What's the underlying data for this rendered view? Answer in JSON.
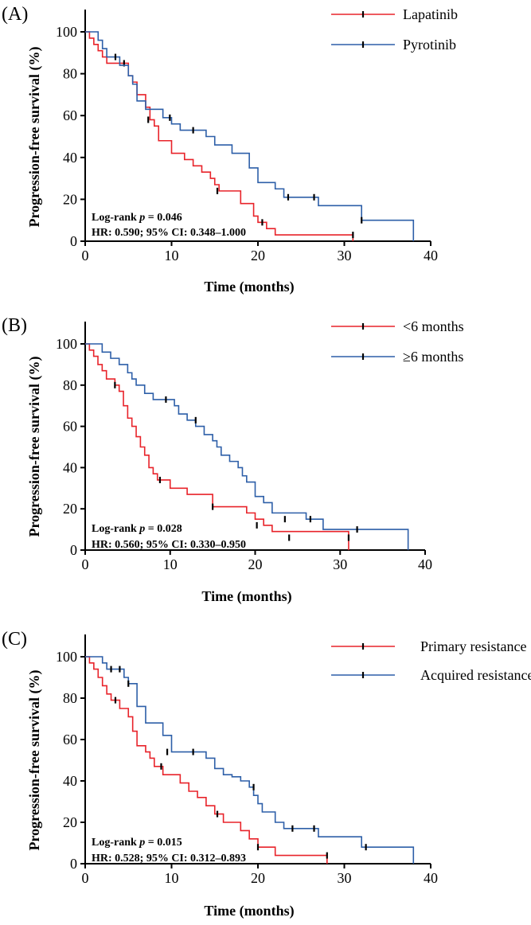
{
  "colors": {
    "red": "#e8232a",
    "blue": "#2d5fa8",
    "axis": "#000000"
  },
  "chart_data": [
    {
      "type": "line",
      "panel_label": "(A)",
      "xlabel": "Time (months)",
      "ylabel": "Progression-free survival (%)",
      "xlim": [
        0,
        40
      ],
      "ylim": [
        0,
        100
      ],
      "xticks": [
        0,
        10,
        20,
        30,
        40
      ],
      "yticks": [
        0,
        20,
        40,
        60,
        80,
        100
      ],
      "grid": false,
      "legend": "top-right",
      "stats": {
        "logrank_prefix": "Log-rank ",
        "p_symbol": "p",
        "p_value": " = 0.046",
        "hr": "HR: 0.590; 95% CI: 0.348–1.000"
      },
      "series": [
        {
          "name": "Lapatinib",
          "color": "red",
          "x": [
            0,
            0.5,
            1,
            1.5,
            2,
            2.5,
            3,
            3.5,
            4,
            5,
            5.5,
            6,
            7,
            7.5,
            8,
            8.5,
            10,
            11.5,
            12.5,
            13.5,
            14.5,
            15,
            15.5,
            16.5,
            18,
            19.5,
            20,
            20.5,
            21,
            21.5,
            22,
            31,
            31
          ],
          "y": [
            100,
            97,
            94,
            91,
            88,
            85,
            85,
            85,
            85,
            79,
            76,
            70,
            64,
            58,
            55,
            48,
            42,
            39,
            36,
            33,
            30,
            27,
            24,
            24,
            18,
            12,
            9,
            9,
            6,
            6,
            3,
            3,
            0
          ],
          "censor_x": [
            4.5,
            7.3,
            15.3,
            20.5,
            31
          ],
          "censor_y": [
            85,
            58,
            24,
            9,
            3
          ]
        },
        {
          "name": "Pyrotinib",
          "color": "blue",
          "x": [
            0,
            1.5,
            2,
            2.5,
            3,
            3.5,
            4,
            5,
            5.5,
            6,
            7,
            9,
            9.5,
            10,
            11,
            13,
            14,
            15,
            16,
            17,
            19,
            20,
            22,
            23,
            26,
            26.5,
            27,
            32,
            38,
            38
          ],
          "y": [
            100,
            96,
            92,
            88,
            88,
            88,
            84,
            79,
            75,
            67,
            63,
            59,
            59,
            56,
            53,
            53,
            50,
            46,
            46,
            42,
            35,
            28,
            25,
            21,
            21,
            21,
            17,
            10,
            10,
            0
          ],
          "censor_x": [
            3.5,
            9.8,
            12.5,
            23.5,
            26.5,
            32
          ],
          "censor_y": [
            88,
            59,
            53,
            21,
            21,
            10
          ]
        }
      ]
    },
    {
      "type": "line",
      "panel_label": "(B)",
      "xlabel": "Time (months)",
      "ylabel": "Progression-free survival (%)",
      "xlim": [
        0,
        40
      ],
      "ylim": [
        0,
        100
      ],
      "xticks": [
        0,
        10,
        20,
        30,
        40
      ],
      "yticks": [
        0,
        20,
        40,
        60,
        80,
        100
      ],
      "grid": false,
      "legend": "top-right",
      "stats": {
        "logrank_prefix": "Log-rank ",
        "p_symbol": "p",
        "p_value": " = 0.028",
        "hr": "HR: 0.560; 95% CI: 0.330–0.950"
      },
      "series": [
        {
          "name": "<6 months",
          "color": "red",
          "x": [
            0,
            0.5,
            1,
            1.5,
            2,
            2.5,
            3,
            3.5,
            4,
            4.5,
            5,
            5.5,
            6,
            6.5,
            7,
            7.5,
            8,
            8.5,
            9,
            10,
            12,
            15,
            19,
            20,
            21,
            22,
            31,
            31
          ],
          "y": [
            100,
            97,
            94,
            90,
            87,
            83,
            83,
            80,
            77,
            70,
            64,
            60,
            55,
            50,
            46,
            40,
            37,
            34,
            34,
            30,
            27,
            21,
            18,
            15,
            12,
            9,
            6,
            0
          ],
          "censor_x": [
            3.5,
            8.8,
            15,
            20.2,
            24,
            31
          ],
          "censor_y": [
            80,
            34,
            21,
            12,
            6,
            6
          ]
        },
        {
          "name": "≥6 months",
          "color": "blue",
          "x": [
            0,
            2,
            3,
            4,
            5,
            5.5,
            6,
            7,
            8,
            10,
            10.5,
            11,
            12,
            13,
            14,
            15,
            15.5,
            16,
            17,
            18,
            18.5,
            19,
            20,
            21,
            22,
            26,
            28,
            38,
            38
          ],
          "y": [
            100,
            96,
            93,
            90,
            86,
            83,
            80,
            76,
            73,
            73,
            70,
            66,
            63,
            60,
            56,
            53,
            50,
            46,
            43,
            40,
            36,
            33,
            26,
            23,
            18,
            15,
            10,
            10,
            0
          ],
          "censor_x": [
            9.5,
            13,
            23.5,
            26.5,
            32
          ],
          "censor_y": [
            73,
            63,
            15,
            15,
            10
          ]
        }
      ]
    },
    {
      "type": "line",
      "panel_label": "(C)",
      "xlabel": "Time (months)",
      "ylabel": "Progression-free survival (%)",
      "xlim": [
        0,
        40
      ],
      "ylim": [
        0,
        100
      ],
      "xticks": [
        0,
        10,
        20,
        30,
        40
      ],
      "yticks": [
        0,
        20,
        40,
        60,
        80,
        100
      ],
      "grid": false,
      "legend": "top-right",
      "stats": {
        "logrank_prefix": "Log-rank ",
        "p_symbol": "p",
        "p_value": " = 0.015",
        "hr": "HR: 0.528; 95% CI: 0.312–0.893"
      },
      "series": [
        {
          "name": "Primary resistance",
          "color": "red",
          "x": [
            0,
            0.5,
            1,
            1.5,
            2,
            2.5,
            3,
            3.5,
            4,
            5,
            5.5,
            6,
            7,
            7.5,
            8,
            8.5,
            9,
            10,
            11,
            12,
            13,
            14,
            15,
            16,
            18,
            19,
            20,
            22,
            28,
            28
          ],
          "y": [
            100,
            97,
            94,
            90,
            86,
            82,
            79,
            79,
            75,
            71,
            64,
            57,
            54,
            51,
            47,
            47,
            43,
            43,
            39,
            35,
            32,
            28,
            24,
            20,
            16,
            12,
            8,
            4,
            4,
            0
          ],
          "censor_x": [
            3.5,
            8.8,
            15.3,
            20,
            28
          ],
          "censor_y": [
            79,
            47,
            24,
            8,
            4
          ]
        },
        {
          "name": "Acquired resistance",
          "color": "blue",
          "x": [
            0,
            2,
            2.5,
            3,
            4,
            4.5,
            5,
            6,
            7,
            9,
            10,
            12,
            13,
            14,
            15,
            16,
            17,
            18,
            19,
            19.5,
            20,
            20.5,
            21,
            22,
            23,
            26,
            27,
            31,
            32,
            38,
            38
          ],
          "y": [
            100,
            97,
            94,
            94,
            94,
            90,
            87,
            76,
            68,
            62,
            54,
            54,
            54,
            51,
            46,
            43,
            42,
            40,
            37,
            33,
            29,
            25,
            25,
            20,
            17,
            17,
            13,
            13,
            8,
            8,
            0
          ],
          "censor_x": [
            3,
            4,
            5,
            9.5,
            12.5,
            19.5,
            24,
            26.5,
            32.5
          ],
          "censor_y": [
            94,
            94,
            87,
            54,
            54,
            37,
            17,
            17,
            8
          ]
        }
      ]
    }
  ]
}
